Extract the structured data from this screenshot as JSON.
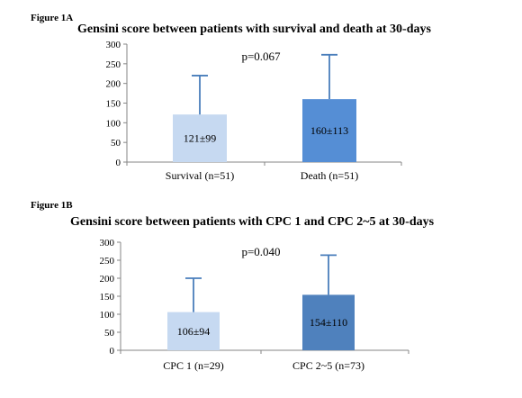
{
  "figures": [
    {
      "label": "Figure 1A"
    },
    {
      "label": "Figure 1B"
    }
  ],
  "chart_data": [
    {
      "type": "bar",
      "title": "Gensini score between patients with survival and death at 30-days",
      "categories": [
        "Survival (n=51)",
        "Death (n=51)"
      ],
      "values": [
        121,
        160
      ],
      "errors": [
        99,
        113
      ],
      "data_labels": [
        "121±99",
        "160±113"
      ],
      "bar_colors": [
        "#c6d9f1",
        "#558ed5"
      ],
      "error_color": "#4a7ebb",
      "annotation": "p=0.067",
      "ylim": [
        0,
        300
      ],
      "yticks": [
        0,
        50,
        100,
        150,
        200,
        250,
        300
      ],
      "grid": false,
      "legend": "none"
    },
    {
      "type": "bar",
      "title": "Gensini score between patients with CPC 1 and CPC 2~5 at 30-days",
      "categories": [
        "CPC 1 (n=29)",
        "CPC 2~5 (n=73)"
      ],
      "values": [
        106,
        154
      ],
      "errors": [
        94,
        110
      ],
      "data_labels": [
        "106±94",
        "154±110"
      ],
      "bar_colors": [
        "#c6d9f1",
        "#4f81bd"
      ],
      "error_color": "#4a7ebb",
      "annotation": "p=0.040",
      "ylim": [
        0,
        300
      ],
      "yticks": [
        0,
        50,
        100,
        150,
        200,
        250,
        300
      ],
      "grid": false,
      "legend": "none"
    }
  ]
}
